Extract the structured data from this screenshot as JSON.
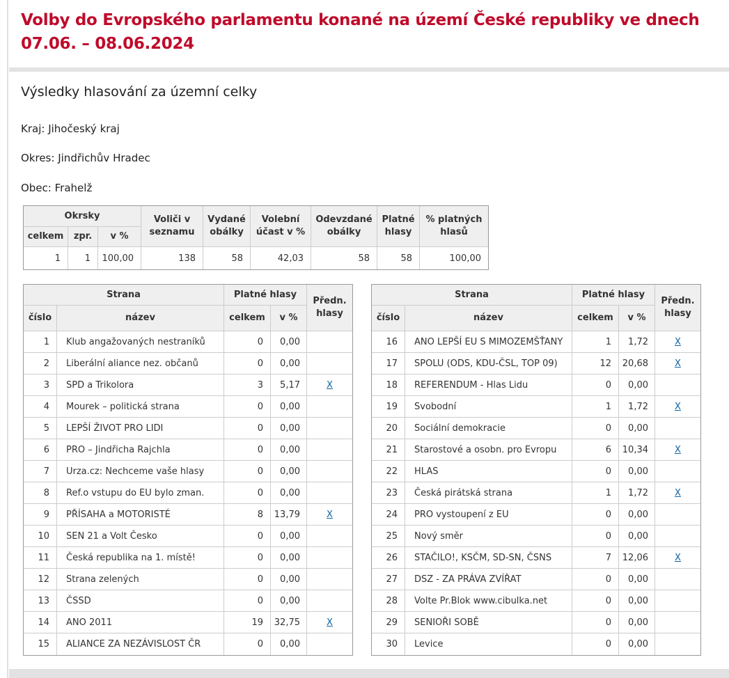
{
  "colors": {
    "title_red": "#bf0b2b",
    "link_blue": "#0b62a4",
    "table_header_bg": "#efefef",
    "border_outer": "#999999",
    "border_inner": "#cccccc",
    "divider_gray": "#e2e2e2"
  },
  "header": {
    "title": "Volby do Evropského parlamentu konané na území České republiky ve dnech 07.06. – 08.06.2024"
  },
  "section": {
    "title": "Výsledky hlasování za územní celky"
  },
  "region": {
    "kraj_label": "Kraj:",
    "kraj_value": "Jihočeský kraj",
    "okres_label": "Okres:",
    "okres_value": "Jindřichův Hradec",
    "obec_label": "Obec:",
    "obec_value": "Frahelž"
  },
  "summary": {
    "headers": {
      "okrsky": "Okrsky",
      "celkem": "celkem",
      "zpr": "zpr.",
      "v_pct": "v %",
      "volici": "Voliči v seznamu",
      "vydane": "Vydané obálky",
      "ucast": "Volební účast v %",
      "odevzdane": "Odevzdané obálky",
      "platne": "Platné hlasy",
      "pct_platnych": "% platných hlasů"
    },
    "row": {
      "okrsky_celkem": "1",
      "okrsky_zpr": "1",
      "okrsky_v_pct": "100,00",
      "volici": "138",
      "vydane": "58",
      "ucast": "42,03",
      "odevzdane": "58",
      "platne": "58",
      "pct_platnych": "100,00"
    }
  },
  "party_table": {
    "headers": {
      "strana": "Strana",
      "cislo": "číslo",
      "nazev": "název",
      "platne_hlasy": "Platné hlasy",
      "celkem": "celkem",
      "v_pct": "v %",
      "predn_hlasy": "Předn. hlasy"
    },
    "pref_link_label": "X"
  },
  "parties": {
    "left": [
      {
        "num": "1",
        "name": "Klub angažovaných nestraníků",
        "votes": "0",
        "pct": "0,00",
        "pref": false
      },
      {
        "num": "2",
        "name": "Liberální aliance nez. občanů",
        "votes": "0",
        "pct": "0,00",
        "pref": false
      },
      {
        "num": "3",
        "name": "SPD a Trikolora",
        "votes": "3",
        "pct": "5,17",
        "pref": true
      },
      {
        "num": "4",
        "name": "Mourek – politická strana",
        "votes": "0",
        "pct": "0,00",
        "pref": false
      },
      {
        "num": "5",
        "name": "LEPŠÍ ŽIVOT PRO LIDI",
        "votes": "0",
        "pct": "0,00",
        "pref": false
      },
      {
        "num": "6",
        "name": "PRO – Jindřicha Rajchla",
        "votes": "0",
        "pct": "0,00",
        "pref": false
      },
      {
        "num": "7",
        "name": "Urza.cz: Nechceme vaše hlasy",
        "votes": "0",
        "pct": "0,00",
        "pref": false
      },
      {
        "num": "8",
        "name": "Ref.o vstupu do EU bylo zman.",
        "votes": "0",
        "pct": "0,00",
        "pref": false
      },
      {
        "num": "9",
        "name": "PŘÍSAHA a MOTORISTÉ",
        "votes": "8",
        "pct": "13,79",
        "pref": true
      },
      {
        "num": "10",
        "name": "SEN 21 a Volt Česko",
        "votes": "0",
        "pct": "0,00",
        "pref": false
      },
      {
        "num": "11",
        "name": "Česká republika na 1. místě!",
        "votes": "0",
        "pct": "0,00",
        "pref": false
      },
      {
        "num": "12",
        "name": "Strana zelených",
        "votes": "0",
        "pct": "0,00",
        "pref": false
      },
      {
        "num": "13",
        "name": "ČSSD",
        "votes": "0",
        "pct": "0,00",
        "pref": false
      },
      {
        "num": "14",
        "name": "ANO 2011",
        "votes": "19",
        "pct": "32,75",
        "pref": true
      },
      {
        "num": "15",
        "name": "ALIANCE ZA NEZÁVISLOST ČR",
        "votes": "0",
        "pct": "0,00",
        "pref": false
      }
    ],
    "right": [
      {
        "num": "16",
        "name": "ANO LEPŠÍ EU S MIMOZEMŠŤANY",
        "votes": "1",
        "pct": "1,72",
        "pref": true
      },
      {
        "num": "17",
        "name": "SPOLU (ODS, KDU-ČSL, TOP 09)",
        "votes": "12",
        "pct": "20,68",
        "pref": true
      },
      {
        "num": "18",
        "name": "REFERENDUM - Hlas Lidu",
        "votes": "0",
        "pct": "0,00",
        "pref": false
      },
      {
        "num": "19",
        "name": "Svobodní",
        "votes": "1",
        "pct": "1,72",
        "pref": true
      },
      {
        "num": "20",
        "name": "Sociální demokracie",
        "votes": "0",
        "pct": "0,00",
        "pref": false
      },
      {
        "num": "21",
        "name": "Starostové a osobn. pro Evropu",
        "votes": "6",
        "pct": "10,34",
        "pref": true
      },
      {
        "num": "22",
        "name": "HLAS",
        "votes": "0",
        "pct": "0,00",
        "pref": false
      },
      {
        "num": "23",
        "name": "Česká pirátská strana",
        "votes": "1",
        "pct": "1,72",
        "pref": true
      },
      {
        "num": "24",
        "name": "PRO vystoupení z EU",
        "votes": "0",
        "pct": "0,00",
        "pref": false
      },
      {
        "num": "25",
        "name": "Nový směr",
        "votes": "0",
        "pct": "0,00",
        "pref": false
      },
      {
        "num": "26",
        "name": "STAČILO!, KSČM, SD-SN, ČSNS",
        "votes": "7",
        "pct": "12,06",
        "pref": true
      },
      {
        "num": "27",
        "name": "DSZ - ZA PRÁVA ZVÍŘAT",
        "votes": "0",
        "pct": "0,00",
        "pref": false
      },
      {
        "num": "28",
        "name": "Volte Pr.Blok www.cibulka.net",
        "votes": "0",
        "pct": "0,00",
        "pref": false
      },
      {
        "num": "29",
        "name": "SENIOŘI SOBĚ",
        "votes": "0",
        "pct": "0,00",
        "pref": false
      },
      {
        "num": "30",
        "name": "Levice",
        "votes": "0",
        "pct": "0,00",
        "pref": false
      }
    ]
  }
}
